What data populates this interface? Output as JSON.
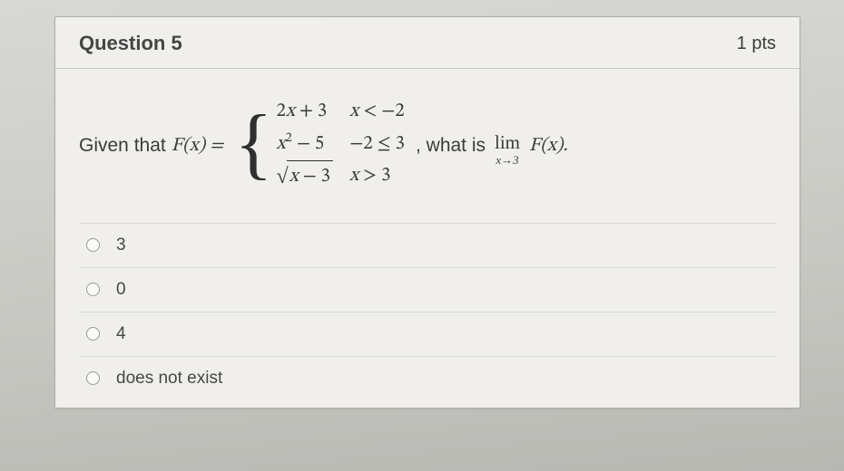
{
  "card": {
    "title": "Question 5",
    "points": "1 pts"
  },
  "stem": {
    "given": "Given that",
    "fx_eq": "F(x) =",
    "pieces": [
      {
        "expr": "2x + 3",
        "cond": "x < −2"
      },
      {
        "expr": "x² − 5",
        "cond": "−2 ≤ 3"
      },
      {
        "expr": "√(x − 3)",
        "cond": "x > 3"
      }
    ],
    "tail_before": ", what is",
    "limit_sub": "x→3",
    "limit_of": "F(x).",
    "lim_word": "lim"
  },
  "options": [
    {
      "label": "3"
    },
    {
      "label": "0"
    },
    {
      "label": "4"
    },
    {
      "label": "does not exist"
    }
  ],
  "colors": {
    "card_bg": "#f0efeb",
    "border": "#aeaea8",
    "text": "#3c3c3c"
  }
}
